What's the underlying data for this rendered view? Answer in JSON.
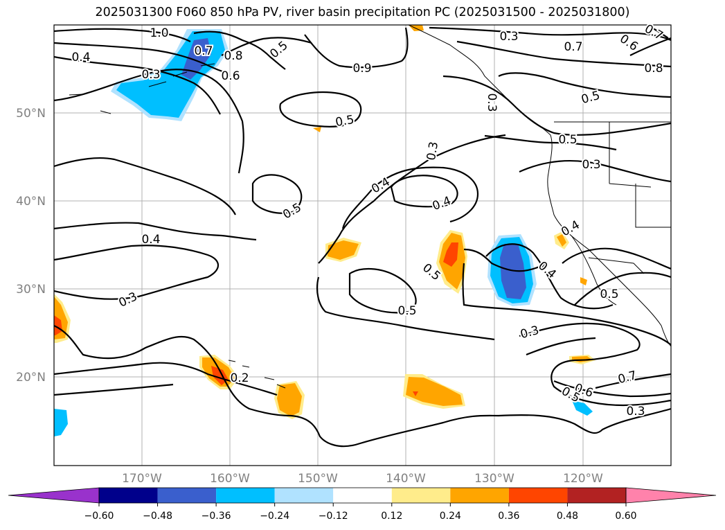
{
  "title": "2025031300 F060 850 hPa PV, river basin precipitation PC (2025031500 - 2025031800)",
  "latitude_labels": [
    "50°N",
    "40°N",
    "30°N",
    "20°N"
  ],
  "longitude_labels": [
    "170°W",
    "160°W",
    "150°W",
    "140°W",
    "130°W",
    "120°W"
  ],
  "contour_labels": [
    "1.0",
    "0.4",
    "0.3",
    "0.7",
    "0.8",
    "0.5",
    "0.9",
    "0.3",
    "0.7",
    "0.6",
    "0.7",
    "0.8",
    "0.6",
    "0.5",
    "0.5",
    "0.3",
    "0.5",
    "0.3",
    "0.3",
    "0.4",
    "0.4",
    "0.5",
    "0.4",
    "0.4",
    "0.3",
    "0.5",
    "0.5",
    "0.4",
    "0.5",
    "0.3",
    "0.2",
    "0.7",
    "0.6",
    "0.5",
    "0.3"
  ],
  "colorbar": {
    "ticks": [
      "−0.60",
      "−0.48",
      "−0.36",
      "−0.24",
      "−0.12",
      "0.12",
      "0.24",
      "0.36",
      "0.48",
      "0.60"
    ],
    "colors": [
      "#9932cc",
      "#00008b",
      "#3a5fcd",
      "#00bfff",
      "#b0e2ff",
      "#ffffff",
      "#ffec8b",
      "#ffa500",
      "#ff4500",
      "#b22222",
      "#ff82ab"
    ]
  },
  "shading_colors": {
    "light_blue": "#b0e2ff",
    "blue": "#00bfff",
    "dark_blue": "#3a5fcd",
    "light_yellow": "#ffec8b",
    "orange": "#ffa500",
    "red_orange": "#ff4500"
  }
}
